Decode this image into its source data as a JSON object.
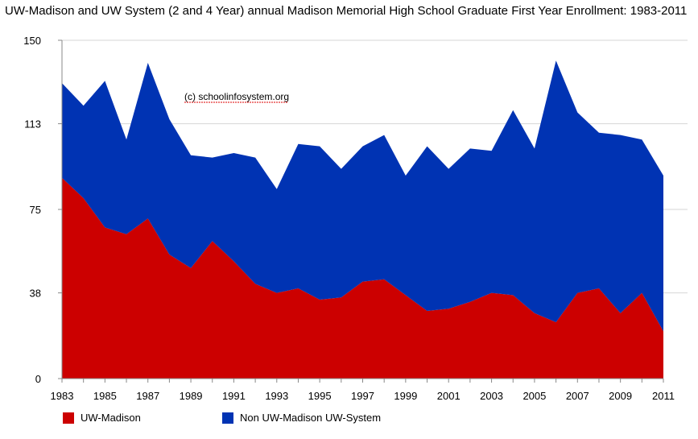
{
  "chart_data": {
    "type": "area",
    "stacked": true,
    "title": "UW-Madison and UW System (2 and 4 Year) annual Madison Memorial High School Graduate First Year Enrollment: 1983-2011",
    "annotation": "(c) schoolinfosystem.org",
    "xlabel": "",
    "ylabel": "",
    "ylim": [
      0,
      150
    ],
    "y_ticks": [
      0,
      38,
      75,
      113,
      150
    ],
    "x": [
      1983,
      1984,
      1985,
      1986,
      1987,
      1988,
      1989,
      1990,
      1991,
      1992,
      1993,
      1994,
      1995,
      1996,
      1997,
      1998,
      1999,
      2000,
      2001,
      2002,
      2003,
      2004,
      2005,
      2006,
      2007,
      2008,
      2009,
      2010,
      2011
    ],
    "x_tick_labels": [
      "1983",
      "1985",
      "1987",
      "1989",
      "1991",
      "1993",
      "1995",
      "1997",
      "1999",
      "2001",
      "2003",
      "2005",
      "2007",
      "2009",
      "2011"
    ],
    "grid": true,
    "legend_position": "bottom",
    "series": [
      {
        "name": "UW-Madison",
        "color": "#cc0000",
        "values": [
          89,
          80,
          67,
          64,
          71,
          55,
          49,
          61,
          52,
          42,
          38,
          40,
          35,
          36,
          43,
          44,
          37,
          30,
          31,
          34,
          38,
          37,
          29,
          25,
          38,
          40,
          29,
          38,
          21
        ]
      },
      {
        "name": "Non UW-Madison UW-System",
        "color": "#0033b3",
        "values": [
          42,
          41,
          65,
          42,
          69,
          60,
          50,
          37,
          48,
          56,
          46,
          64,
          68,
          57,
          60,
          64,
          53,
          73,
          62,
          68,
          63,
          82,
          73,
          116,
          80,
          69,
          79,
          68,
          69
        ]
      }
    ]
  }
}
